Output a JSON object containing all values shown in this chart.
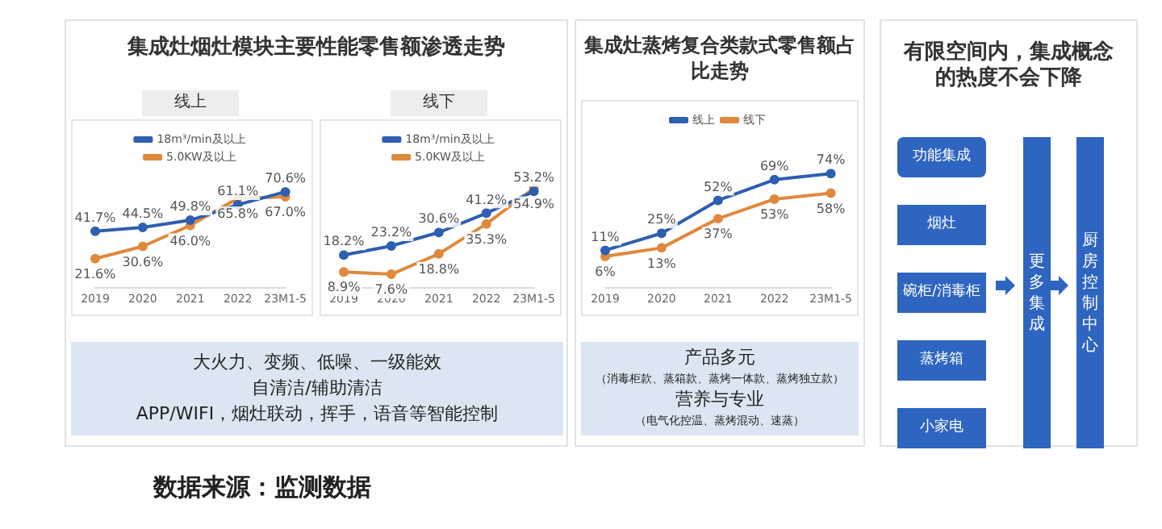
{
  "chart_data": [
    {
      "type": "line",
      "title": "集成灶烟灶模块主要性能零售额渗透走势",
      "subtitle": "线上",
      "categories": [
        "2019",
        "2020",
        "2021",
        "2022",
        "23M1-5"
      ],
      "legend": "top",
      "marker": "circle",
      "line_style": "solid",
      "grid": false,
      "series": [
        {
          "name": "18m³/min及以上",
          "color": "#2e5fb0",
          "values": [
            41.7,
            44.5,
            49.8,
            61.1,
            70.6
          ],
          "value_labels": [
            "41.7%",
            "44.5%",
            "49.8%",
            "61.1%",
            "70.6%"
          ]
        },
        {
          "name": "5.0KW及以上",
          "color": "#e0893c",
          "values": [
            21.6,
            30.6,
            46.0,
            65.8,
            67.0
          ],
          "value_labels": [
            "21.6%",
            "30.6%",
            "46.0%",
            "65.8%",
            "67.0%"
          ]
        }
      ],
      "annotations": [
        "大火力、变频、低噪、一级能效",
        "自清洁/辅助清洁",
        "APP/WIFI，烟灶联动，挥手，语音等智能控制",
        "数据来源：监测数据"
      ]
    },
    {
      "type": "line",
      "subtitle": "线下",
      "categories": [
        "2019",
        "2020",
        "2021",
        "2022",
        "23M1-5"
      ],
      "legend": "top",
      "marker": "circle",
      "line_style": "solid",
      "grid": false,
      "series": [
        {
          "name": "18m³/min及以上",
          "color": "#2e5fb0",
          "values": [
            18.2,
            23.2,
            30.6,
            41.2,
            53.2
          ],
          "value_labels": [
            "18.2%",
            "23.2%",
            "30.6%",
            "41.2%",
            "53.2%"
          ]
        },
        {
          "name": "5.0KW及以上",
          "color": "#e0893c",
          "values": [
            8.9,
            7.6,
            18.8,
            35.3,
            54.9
          ],
          "value_labels": [
            "8.9%",
            "7.6%",
            "18.8%",
            "35.3%",
            "54.9%"
          ]
        }
      ]
    },
    {
      "type": "line",
      "title": "集成灶蒸烤复合类款式零售额占比走势",
      "categories": [
        "2019",
        "2020",
        "2021",
        "2022",
        "23M1-5"
      ],
      "legend": "top",
      "marker": "circle",
      "line_style": "solid",
      "grid": false,
      "series": [
        {
          "name": "线上",
          "color": "#2e5fb0",
          "values": [
            11,
            25,
            52,
            69,
            74
          ],
          "value_labels": [
            "11%",
            "25%",
            "52%",
            "69%",
            "74%"
          ]
        },
        {
          "name": "线下",
          "color": "#e0893c",
          "values": [
            6,
            13,
            37,
            53,
            58
          ],
          "value_labels": [
            "6%",
            "13%",
            "37%",
            "53%",
            "58%"
          ]
        }
      ],
      "annotations": [
        "产品多元",
        "（消毒柜款、蒸箱款、蒸烤一体款、蒸烤独立款）",
        "营养与专业",
        "（电气化控温、蒸烤混动、速蒸）"
      ]
    },
    {
      "type": "other",
      "title": "有限空间内，集成概念的热度不会下降",
      "annotations": [
        "功能集成",
        "烟灶",
        "碗柜/消毒柜",
        "蒸烤箱",
        "小家电",
        "更多集成",
        "厨房控制中心"
      ]
    }
  ]
}
